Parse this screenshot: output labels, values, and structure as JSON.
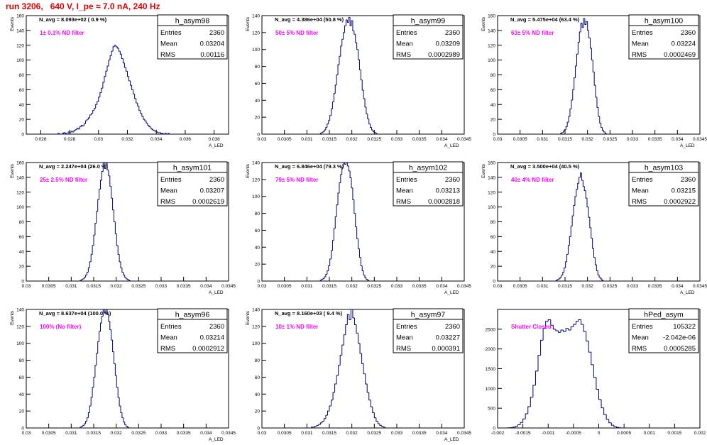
{
  "header": {
    "title": "run 3206,   640 V, I_pe ≈ 7.0 nA, 240 Hz"
  },
  "colors": {
    "title": "#e00000",
    "annotation": "#ff00ff",
    "histogram": "#00007a",
    "axis": "#000000"
  },
  "chart_data": [
    {
      "type": "histogram",
      "name": "h_asym98",
      "title_label": "N_avg = 8.093e+02 ( 0.9 %)",
      "annotation": "1± 0.1% ND filter",
      "ylabel": "Events",
      "xlabel": "A_LED",
      "xlim": [
        0.025,
        0.039
      ],
      "ylim": [
        0,
        160
      ],
      "xticks": [
        0.026,
        0.028,
        0.03,
        0.032,
        0.034,
        0.036,
        0.038
      ],
      "xtick_labels": [
        "0.026",
        "0.028",
        "0.03",
        "0.032",
        "0.034",
        "0.036",
        "0.038"
      ],
      "yticks": [
        0,
        20,
        40,
        60,
        80,
        100,
        120,
        140,
        160
      ],
      "ytick_labels": [
        "0",
        "20",
        "40",
        "60",
        "80",
        "100",
        "120",
        "140",
        "160"
      ],
      "stats": [
        {
          "label": "Entries",
          "value": "2360"
        },
        {
          "label": "Mean",
          "value": "0.03204"
        },
        {
          "label": "RMS",
          "value": "0.00116"
        }
      ],
      "bins": {
        "x0": 0.0272,
        "width": 0.0001,
        "counts": [
          1,
          0,
          0,
          1,
          2,
          1,
          0,
          3,
          2,
          4,
          3,
          5,
          6,
          8,
          7,
          10,
          12,
          11,
          14,
          18,
          20,
          22,
          26,
          28,
          32,
          35,
          40,
          44,
          50,
          56,
          62,
          70,
          78,
          85,
          92,
          100,
          106,
          112,
          118,
          120,
          118,
          116,
          112,
          108,
          102,
          96,
          90,
          85,
          78,
          72,
          66,
          60,
          54,
          48,
          42,
          38,
          32,
          28,
          24,
          20,
          18,
          15,
          12,
          10,
          8,
          6,
          5,
          4,
          3,
          2,
          2,
          1,
          1,
          0,
          1,
          0,
          1
        ]
      }
    },
    {
      "type": "histogram",
      "name": "h_asym99",
      "title_label": "N_avg = 4.386e+04 (50.8 %)",
      "annotation": "50± 5% ND filter",
      "ylabel": "Events",
      "xlabel": "A_LED",
      "xlim": [
        0.03,
        0.0345
      ],
      "ylim": [
        0,
        140
      ],
      "xticks": [
        0.03,
        0.0305,
        0.031,
        0.0315,
        0.032,
        0.0325,
        0.033,
        0.0335,
        0.034,
        0.0345
      ],
      "xtick_labels": [
        "0.03",
        "0.0305",
        "0.031",
        "0.0315",
        "0.032",
        "0.0325",
        "0.033",
        "0.0335",
        "0.034",
        "0.0345"
      ],
      "yticks": [
        0,
        20,
        40,
        60,
        80,
        100,
        120,
        140
      ],
      "ytick_labels": [
        "0",
        "20",
        "40",
        "60",
        "80",
        "100",
        "120",
        "140"
      ],
      "stats": [
        {
          "label": "Entries",
          "value": "2360"
        },
        {
          "label": "Mean",
          "value": "0.03209"
        },
        {
          "label": "RMS",
          "value": "0.0002989"
        }
      ],
      "bins": {
        "x0": 0.0313,
        "width": 3e-05,
        "counts": [
          1,
          2,
          3,
          5,
          8,
          12,
          16,
          22,
          30,
          38,
          48,
          58,
          70,
          82,
          92,
          104,
          112,
          120,
          128,
          135,
          132,
          138,
          128,
          134,
          122,
          118,
          108,
          100,
          88,
          76,
          64,
          52,
          42,
          32,
          24,
          18,
          12,
          8,
          5,
          3,
          2,
          1
        ]
      }
    },
    {
      "type": "histogram",
      "name": "h_asym100",
      "title_label": "N_avg = 5.475e+04 (63.4 %)",
      "annotation": "63± 5% ND filter",
      "ylabel": "Events",
      "xlabel": "A_LED",
      "xlim": [
        0.03,
        0.0345
      ],
      "ylim": [
        0,
        160
      ],
      "xticks": [
        0.03,
        0.0305,
        0.031,
        0.0315,
        0.032,
        0.0325,
        0.033,
        0.0335,
        0.034,
        0.0345
      ],
      "xtick_labels": [
        "0.03",
        "0.0305",
        "0.031",
        "0.0315",
        "0.032",
        "0.0325",
        "0.033",
        "0.0335",
        "0.034",
        "0.0345"
      ],
      "yticks": [
        0,
        20,
        40,
        60,
        80,
        100,
        120,
        140,
        160
      ],
      "ytick_labels": [
        "0",
        "20",
        "40",
        "60",
        "80",
        "100",
        "120",
        "140",
        "160"
      ],
      "stats": [
        {
          "label": "Entries",
          "value": "2360"
        },
        {
          "label": "Mean",
          "value": "0.03224"
        },
        {
          "label": "RMS",
          "value": "0.0002469"
        }
      ],
      "bins": {
        "x0": 0.0314,
        "width": 3e-05,
        "counts": [
          1,
          2,
          4,
          6,
          10,
          16,
          24,
          34,
          46,
          60,
          76,
          92,
          108,
          124,
          138,
          150,
          144,
          156,
          148,
          152,
          140,
          130,
          116,
          100,
          84,
          66,
          50,
          36,
          24,
          15,
          9,
          5,
          3,
          1
        ]
      }
    },
    {
      "type": "histogram",
      "name": "h_asym101",
      "title_label": "N_avg = 2.247e+04 (26.0 %)",
      "annotation": "25± 2.5% ND filter",
      "ylabel": "Events",
      "xlabel": "A_LED",
      "xlim": [
        0.03,
        0.0345
      ],
      "ylim": [
        0,
        160
      ],
      "xticks": [
        0.03,
        0.0305,
        0.031,
        0.0315,
        0.032,
        0.0325,
        0.033,
        0.0335,
        0.034,
        0.0345
      ],
      "xtick_labels": [
        "0.03",
        "0.0305",
        "0.031",
        "0.0315",
        "0.032",
        "0.0325",
        "0.033",
        "0.0335",
        "0.034",
        "0.0345"
      ],
      "yticks": [
        0,
        20,
        40,
        60,
        80,
        100,
        120,
        140,
        160
      ],
      "ytick_labels": [
        "0",
        "20",
        "40",
        "60",
        "80",
        "100",
        "120",
        "140",
        "160"
      ],
      "stats": [
        {
          "label": "Entries",
          "value": "2360"
        },
        {
          "label": "Mean",
          "value": "0.03207"
        },
        {
          "label": "RMS",
          "value": "0.0002619"
        }
      ],
      "bins": {
        "x0": 0.0312,
        "width": 3e-05,
        "counts": [
          1,
          2,
          3,
          5,
          8,
          12,
          18,
          26,
          36,
          48,
          62,
          78,
          94,
          110,
          124,
          136,
          148,
          160,
          152,
          164,
          150,
          142,
          128,
          112,
          96,
          80,
          64,
          48,
          36,
          26,
          18,
          12,
          8,
          5,
          3,
          2,
          1
        ]
      }
    },
    {
      "type": "histogram",
      "name": "h_asym102",
      "title_label": "N_avg = 6.846e+04 (79.3 %)",
      "annotation": "79± 5% ND filter",
      "ylabel": "Events",
      "xlabel": "A_LED",
      "xlim": [
        0.03,
        0.0345
      ],
      "ylim": [
        0,
        140
      ],
      "xticks": [
        0.03,
        0.0305,
        0.031,
        0.0315,
        0.032,
        0.0325,
        0.033,
        0.0335,
        0.034,
        0.0345
      ],
      "xtick_labels": [
        "0.03",
        "0.0305",
        "0.031",
        "0.0315",
        "0.032",
        "0.0325",
        "0.033",
        "0.0335",
        "0.034",
        "0.0345"
      ],
      "yticks": [
        0,
        20,
        40,
        60,
        80,
        100,
        120,
        140
      ],
      "ytick_labels": [
        "0",
        "20",
        "40",
        "60",
        "80",
        "100",
        "120",
        "140"
      ],
      "stats": [
        {
          "label": "Entries",
          "value": "2360"
        },
        {
          "label": "Mean",
          "value": "0.03213"
        },
        {
          "label": "RMS",
          "value": "0.0002818"
        }
      ],
      "bins": {
        "x0": 0.0313,
        "width": 3e-05,
        "counts": [
          1,
          2,
          3,
          5,
          8,
          12,
          18,
          26,
          36,
          48,
          62,
          76,
          90,
          104,
          116,
          126,
          134,
          140,
          138,
          140,
          136,
          130,
          122,
          110,
          96,
          80,
          64,
          50,
          38,
          28,
          18,
          12,
          7,
          4,
          2,
          1
        ]
      }
    },
    {
      "type": "histogram",
      "name": "h_asym103",
      "title_label": "N_avg = 3.500e+04 (40.5 %)",
      "annotation": "40± 4% ND filter",
      "ylabel": "Events",
      "xlabel": "A_LED",
      "xlim": [
        0.03,
        0.0345
      ],
      "ylim": [
        0,
        160
      ],
      "xticks": [
        0.03,
        0.0305,
        0.031,
        0.0315,
        0.032,
        0.0325,
        0.033,
        0.0335,
        0.034,
        0.0345
      ],
      "xtick_labels": [
        "0.03",
        "0.0305",
        "0.031",
        "0.0315",
        "0.032",
        "0.0325",
        "0.033",
        "0.0335",
        "0.034",
        "0.0345"
      ],
      "yticks": [
        0,
        20,
        40,
        60,
        80,
        100,
        120,
        140,
        160
      ],
      "ytick_labels": [
        "0",
        "20",
        "40",
        "60",
        "80",
        "100",
        "120",
        "140",
        "160"
      ],
      "stats": [
        {
          "label": "Entries",
          "value": "2360"
        },
        {
          "label": "Mean",
          "value": "0.03215"
        },
        {
          "label": "RMS",
          "value": "0.0002922"
        }
      ],
      "bins": {
        "x0": 0.0313,
        "width": 3e-05,
        "counts": [
          1,
          2,
          3,
          5,
          8,
          12,
          18,
          26,
          36,
          48,
          60,
          74,
          88,
          102,
          114,
          124,
          132,
          140,
          146,
          136,
          128,
          122,
          112,
          100,
          86,
          72,
          58,
          44,
          32,
          22,
          14,
          8,
          5,
          3,
          1
        ]
      }
    },
    {
      "type": "histogram",
      "name": "h_asym96",
      "title_label": "N_avg = 8.637e+04 (100.0 %)",
      "annotation": "100% (No filter)",
      "ylabel": "Events",
      "xlabel": "A_LED",
      "xlim": [
        0.03,
        0.0345
      ],
      "ylim": [
        0,
        140
      ],
      "xticks": [
        0.03,
        0.0305,
        0.031,
        0.0315,
        0.032,
        0.0325,
        0.033,
        0.0335,
        0.034,
        0.0345
      ],
      "xtick_labels": [
        "0.03",
        "0.0305",
        "0.031",
        "0.0315",
        "0.032",
        "0.0325",
        "0.033",
        "0.0335",
        "0.034",
        "0.0345"
      ],
      "yticks": [
        0,
        20,
        40,
        60,
        80,
        100,
        120,
        140
      ],
      "ytick_labels": [
        "0",
        "20",
        "40",
        "60",
        "80",
        "100",
        "120",
        "140"
      ],
      "stats": [
        {
          "label": "Entries",
          "value": "2360"
        },
        {
          "label": "Mean",
          "value": "0.03214"
        },
        {
          "label": "RMS",
          "value": "0.0002912"
        }
      ],
      "bins": {
        "x0": 0.0312,
        "width": 3e-05,
        "counts": [
          1,
          2,
          3,
          5,
          8,
          12,
          18,
          26,
          36,
          48,
          60,
          74,
          88,
          102,
          114,
          124,
          132,
          140,
          136,
          140,
          134,
          126,
          116,
          104,
          90,
          76,
          62,
          48,
          36,
          26,
          18,
          12,
          7,
          4,
          2,
          1
        ]
      }
    },
    {
      "type": "histogram",
      "name": "h_asym97",
      "title_label": "N_avg = 8.160e+03 ( 9.4 %)",
      "annotation": "10± 1% ND filter",
      "ylabel": "Events",
      "xlabel": "A_LED",
      "xlim": [
        0.03,
        0.0345
      ],
      "ylim": [
        0,
        140
      ],
      "xticks": [
        0.03,
        0.0305,
        0.031,
        0.0315,
        0.032,
        0.0325,
        0.033,
        0.0335,
        0.034,
        0.0345
      ],
      "xtick_labels": [
        "0.03",
        "0.0305",
        "0.031",
        "0.0315",
        "0.032",
        "0.0325",
        "0.033",
        "0.0335",
        "0.034",
        "0.0345"
      ],
      "yticks": [
        0,
        20,
        40,
        60,
        80,
        100,
        120,
        140
      ],
      "ytick_labels": [
        "0",
        "20",
        "40",
        "60",
        "80",
        "100",
        "120",
        "140"
      ],
      "stats": [
        {
          "label": "Entries",
          "value": "2360"
        },
        {
          "label": "Mean",
          "value": "0.03227"
        },
        {
          "label": "RMS",
          "value": "0.000391"
        }
      ],
      "bins": {
        "x0": 0.0311,
        "width": 4e-05,
        "counts": [
          1,
          1,
          2,
          3,
          4,
          6,
          8,
          11,
          15,
          20,
          26,
          33,
          42,
          52,
          62,
          74,
          86,
          98,
          110,
          122,
          134,
          128,
          140,
          130,
          122,
          112,
          100,
          88,
          76,
          64,
          52,
          42,
          33,
          25,
          18,
          12,
          8,
          5,
          3,
          2,
          1
        ]
      }
    },
    {
      "type": "histogram",
      "name": "hPed_asym",
      "title_label": "",
      "annotation": "Shutter Closed",
      "ylabel": "",
      "xlabel": "",
      "xlim": [
        -0.002,
        0.002
      ],
      "ylim": [
        0,
        3000
      ],
      "xticks": [
        -0.002,
        -0.0015,
        -0.001,
        -0.0005,
        0,
        0.0005,
        0.001,
        0.0015,
        0.002
      ],
      "xtick_labels": [
        "-0.002",
        "-0.0015",
        "-0.001",
        "-0.0005",
        "0",
        "0.0005",
        "0.001",
        "0.0015",
        "0.002"
      ],
      "yticks": [
        0,
        500,
        1000,
        1500,
        2000,
        2500
      ],
      "ytick_labels": [
        "0",
        "500",
        "1000",
        "1500",
        "2000",
        "2500"
      ],
      "stats": [
        {
          "label": "Entries",
          "value": "105322"
        },
        {
          "label": "Mean",
          "value": "-2.042e-06"
        },
        {
          "label": "RMS",
          "value": "0.0005285"
        }
      ],
      "bins": {
        "x0": -0.0018,
        "width": 5e-05,
        "counts": [
          5,
          10,
          20,
          40,
          80,
          140,
          230,
          360,
          540,
          780,
          1080,
          1440,
          1840,
          2220,
          2520,
          2700,
          2740,
          2600,
          2500,
          2460,
          2420,
          2480,
          2440,
          2520,
          2480,
          2560,
          2620,
          2700,
          2740,
          2620,
          2440,
          2200,
          1920,
          1600,
          1280,
          980,
          720,
          510,
          340,
          220,
          130,
          70,
          35,
          15,
          5
        ]
      }
    }
  ]
}
